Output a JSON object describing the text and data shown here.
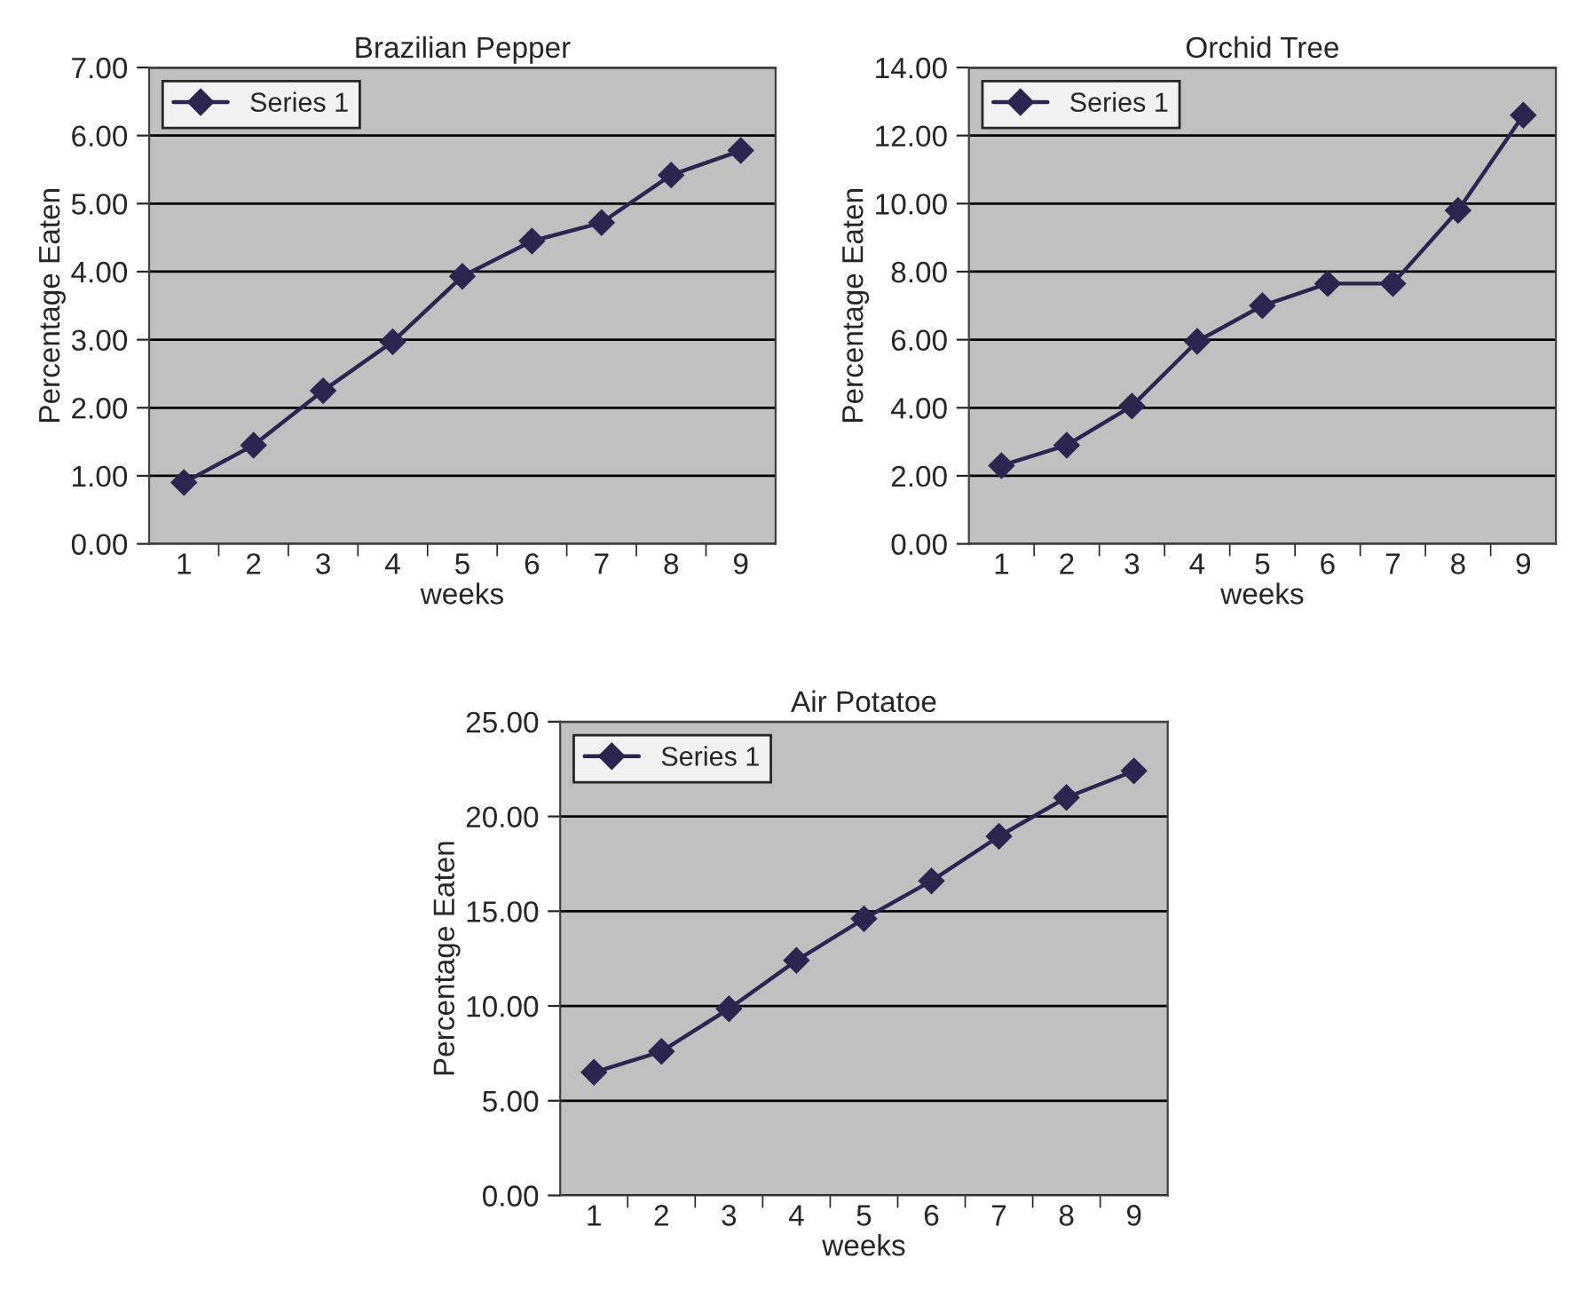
{
  "chart_data": [
    {
      "type": "line",
      "title": "Brazilian Pepper",
      "xlabel": "weeks",
      "ylabel": "Percentage Eaten",
      "categories": [
        "1",
        "2",
        "3",
        "4",
        "5",
        "6",
        "7",
        "8",
        "9"
      ],
      "series": [
        {
          "name": "Series 1",
          "color": "#2b2650",
          "values": [
            0.9,
            1.45,
            2.25,
            2.97,
            3.93,
            4.45,
            4.72,
            5.42,
            5.78
          ]
        }
      ],
      "ylim": [
        0,
        7
      ],
      "yticks": [
        {
          "value": 0,
          "label": "0.00"
        },
        {
          "value": 1,
          "label": "1.00"
        },
        {
          "value": 2,
          "label": "2.00"
        },
        {
          "value": 3,
          "label": "3.00"
        },
        {
          "value": 4,
          "label": "4.00"
        },
        {
          "value": 5,
          "label": "5.00"
        },
        {
          "value": 6,
          "label": "6.00"
        },
        {
          "value": 7,
          "label": "7.00"
        }
      ],
      "grid": "y",
      "legend": "top left",
      "marker": "diamond",
      "line_style": "solid"
    },
    {
      "type": "line",
      "title": "Orchid Tree",
      "xlabel": "weeks",
      "ylabel": "Percentage Eaten",
      "categories": [
        "1",
        "2",
        "3",
        "4",
        "5",
        "6",
        "7",
        "8",
        "9"
      ],
      "series": [
        {
          "name": "Series 1",
          "color": "#2b2650",
          "values": [
            2.3,
            2.9,
            4.05,
            5.95,
            7.0,
            7.65,
            7.65,
            9.8,
            12.6
          ]
        }
      ],
      "ylim": [
        0,
        14
      ],
      "yticks": [
        {
          "value": 0,
          "label": "0.00"
        },
        {
          "value": 2,
          "label": "2.00"
        },
        {
          "value": 4,
          "label": "4.00"
        },
        {
          "value": 6,
          "label": "6.00"
        },
        {
          "value": 8,
          "label": "8.00"
        },
        {
          "value": 10,
          "label": "10.00"
        },
        {
          "value": 12,
          "label": "12.00"
        },
        {
          "value": 14,
          "label": "14.00"
        }
      ],
      "grid": "y",
      "legend": "top left",
      "marker": "diamond",
      "line_style": "solid"
    },
    {
      "type": "line",
      "title": "Air Potatoe",
      "xlabel": "weeks",
      "ylabel": "Percentage Eaten",
      "categories": [
        "1",
        "2",
        "3",
        "4",
        "5",
        "6",
        "7",
        "8",
        "9"
      ],
      "series": [
        {
          "name": "Series 1",
          "color": "#2b2650",
          "values": [
            6.5,
            7.6,
            9.85,
            12.4,
            14.6,
            16.6,
            18.95,
            21.0,
            22.4
          ]
        }
      ],
      "ylim": [
        0,
        25
      ],
      "yticks": [
        {
          "value": 0,
          "label": "0.00"
        },
        {
          "value": 5,
          "label": "5.00"
        },
        {
          "value": 10,
          "label": "10.00"
        },
        {
          "value": 15,
          "label": "15.00"
        },
        {
          "value": 20,
          "label": "20.00"
        },
        {
          "value": 25,
          "label": "25.00"
        }
      ],
      "grid": "y",
      "legend": "top left",
      "marker": "diamond",
      "line_style": "solid"
    }
  ]
}
